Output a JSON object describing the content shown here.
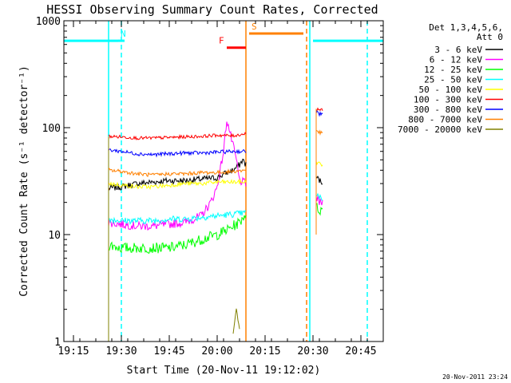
{
  "chart_data": {
    "type": "line",
    "title": "HESSI Observing Summary Count Rates, Corrected",
    "xlabel": "Start Time (20-Nov-11 19:12:02)",
    "ylabel": "Corrected Count Rate (s⁻¹ detector⁻¹)",
    "x_unit": "minutes",
    "xlim": [
      "19:12",
      "20:52"
    ],
    "ylim": [
      1,
      1000
    ],
    "yscale": "log",
    "x_ticks": [
      "19:15",
      "19:30",
      "19:45",
      "20:00",
      "20:15",
      "20:30",
      "20:45"
    ],
    "y_ticks": [
      {
        "value": 1,
        "label": "1"
      },
      {
        "value": 10,
        "label": "10"
      },
      {
        "value": 100,
        "label": "100"
      },
      {
        "value": 1000,
        "label": "1000"
      }
    ],
    "footer_timestamp": "20-Nov-2011 23:24",
    "legend_placement": "right",
    "legend_header": [
      "Det 1,3,4,5,6,",
      "Att 0"
    ],
    "series": [
      {
        "name": "3 - 6 keV",
        "color": "#000000",
        "points": [
          [
            "19:26",
            27
          ],
          [
            "19:30",
            28
          ],
          [
            "19:35",
            30
          ],
          [
            "19:40",
            31
          ],
          [
            "19:45",
            32
          ],
          [
            "19:50",
            32
          ],
          [
            "19:55",
            33
          ],
          [
            "20:00",
            34
          ],
          [
            "20:03",
            38
          ],
          [
            "20:05",
            40
          ],
          [
            "20:07",
            45
          ],
          [
            "20:08",
            50
          ],
          [
            "20:09",
            45
          ]
        ],
        "points2": [
          [
            "20:31",
            35
          ],
          [
            "20:32",
            32
          ],
          [
            "20:33",
            31
          ]
        ]
      },
      {
        "name": "6 - 12 keV",
        "color": "#ff00ff",
        "points": [
          [
            "19:26",
            13
          ],
          [
            "19:30",
            12.5
          ],
          [
            "19:35",
            12
          ],
          [
            "19:40",
            12
          ],
          [
            "19:45",
            12.5
          ],
          [
            "19:50",
            13
          ],
          [
            "19:55",
            15
          ],
          [
            "19:58",
            20
          ],
          [
            "20:00",
            28
          ],
          [
            "20:02",
            60
          ],
          [
            "20:03",
            120
          ],
          [
            "20:04",
            90
          ],
          [
            "20:06",
            50
          ],
          [
            "20:07",
            32
          ],
          [
            "20:09",
            30
          ]
        ],
        "points2": [
          [
            "20:31",
            22
          ],
          [
            "20:32",
            20
          ],
          [
            "20:33",
            20
          ]
        ]
      },
      {
        "name": "12 - 25 keV",
        "color": "#00ff00",
        "points": [
          [
            "19:26",
            8
          ],
          [
            "19:30",
            7.5
          ],
          [
            "19:35",
            7.5
          ],
          [
            "19:40",
            7.5
          ],
          [
            "19:45",
            7.5
          ],
          [
            "19:50",
            8
          ],
          [
            "19:55",
            9
          ],
          [
            "20:00",
            10
          ],
          [
            "20:03",
            11
          ],
          [
            "20:05",
            12
          ],
          [
            "20:07",
            13
          ],
          [
            "20:09",
            16
          ]
        ],
        "points2": [
          [
            "20:31",
            18
          ],
          [
            "20:32",
            17
          ],
          [
            "20:33",
            17
          ]
        ]
      },
      {
        "name": "25 - 50 keV",
        "color": "#00ffff",
        "points": [
          [
            "19:26",
            14
          ],
          [
            "19:30",
            13.5
          ],
          [
            "19:35",
            13.5
          ],
          [
            "19:40",
            13.5
          ],
          [
            "19:45",
            14
          ],
          [
            "19:50",
            14
          ],
          [
            "19:55",
            14.5
          ],
          [
            "20:00",
            15
          ],
          [
            "20:05",
            15.5
          ],
          [
            "20:09",
            16
          ]
        ],
        "points2": [
          [
            "20:31",
            24
          ],
          [
            "20:32",
            22
          ],
          [
            "20:33",
            22
          ]
        ]
      },
      {
        "name": "50 - 100 keV",
        "color": "#ffff00",
        "points": [
          [
            "19:26",
            30
          ],
          [
            "19:30",
            29
          ],
          [
            "19:35",
            28
          ],
          [
            "19:40",
            28
          ],
          [
            "19:45",
            29
          ],
          [
            "19:50",
            30
          ],
          [
            "19:55",
            30
          ],
          [
            "20:00",
            31
          ],
          [
            "20:05",
            31
          ],
          [
            "20:09",
            31
          ]
        ],
        "points2": [
          [
            "20:31",
            48
          ],
          [
            "20:32",
            46
          ],
          [
            "20:33",
            45
          ]
        ]
      },
      {
        "name": "100 - 300 keV",
        "color": "#ff0000",
        "points": [
          [
            "19:26",
            83
          ],
          [
            "19:30",
            82
          ],
          [
            "19:35",
            80
          ],
          [
            "19:40",
            80
          ],
          [
            "19:45",
            81
          ],
          [
            "19:50",
            82
          ],
          [
            "19:55",
            83
          ],
          [
            "20:00",
            85
          ],
          [
            "20:05",
            84
          ],
          [
            "20:09",
            88
          ]
        ],
        "points2": [
          [
            "20:31",
            150
          ],
          [
            "20:32",
            148
          ],
          [
            "20:33",
            145
          ]
        ]
      },
      {
        "name": "300 - 800 keV",
        "color": "#0000ff",
        "points": [
          [
            "19:26",
            62
          ],
          [
            "19:30",
            60
          ],
          [
            "19:35",
            57
          ],
          [
            "19:40",
            56
          ],
          [
            "19:45",
            57
          ],
          [
            "19:50",
            58
          ],
          [
            "19:55",
            58
          ],
          [
            "20:00",
            59
          ],
          [
            "20:05",
            60
          ],
          [
            "20:09",
            60
          ]
        ],
        "points2": [
          [
            "20:31",
            140
          ],
          [
            "20:32",
            135
          ],
          [
            "20:33",
            132
          ]
        ]
      },
      {
        "name": "800 - 7000 keV",
        "color": "#ff8000",
        "points": [
          [
            "19:26",
            40
          ],
          [
            "19:30",
            39
          ],
          [
            "19:35",
            37
          ],
          [
            "19:40",
            36
          ],
          [
            "19:45",
            37
          ],
          [
            "19:50",
            37
          ],
          [
            "19:55",
            38
          ],
          [
            "20:00",
            38
          ],
          [
            "20:05",
            39
          ],
          [
            "20:09",
            40
          ]
        ],
        "points2": [
          [
            "20:31",
            95
          ],
          [
            "20:32",
            90
          ],
          [
            "20:33",
            88
          ]
        ]
      },
      {
        "name": "7000 - 20000 keV",
        "color": "#808000",
        "points": [
          [
            "20:05",
            1.2
          ],
          [
            "20:06",
            2.0
          ],
          [
            "20:07",
            1.3
          ]
        ],
        "points2": []
      }
    ],
    "attenuator_states": [
      {
        "label": "",
        "value": 650,
        "start": "19:12",
        "end": "19:29",
        "color": "#00ffff"
      },
      {
        "label": "N",
        "value": 650,
        "start": "19:29",
        "end": "19:31",
        "color": "#00ffff"
      },
      {
        "label": "F",
        "value": 560,
        "start": "20:03",
        "end": "20:09",
        "color": "#ff0000"
      },
      {
        "label": "S",
        "value": 760,
        "start": "20:10",
        "end": "20:27",
        "color": "#ff8000"
      },
      {
        "label": "",
        "value": 650,
        "start": "20:30",
        "end": "20:52",
        "color": "#00ffff"
      }
    ],
    "vertical_markers": [
      {
        "x": "19:26",
        "color": "#00ffff",
        "style": "solid"
      },
      {
        "x": "19:30",
        "color": "#00ffff",
        "style": "dashed"
      },
      {
        "x": "20:09",
        "color": "#ff8000",
        "style": "solid"
      },
      {
        "x": "20:28",
        "color": "#ff8000",
        "style": "dashed"
      },
      {
        "x": "20:29",
        "color": "#00ffff",
        "style": "solid"
      },
      {
        "x": "20:47",
        "color": "#00ffff",
        "style": "dashed"
      }
    ]
  }
}
